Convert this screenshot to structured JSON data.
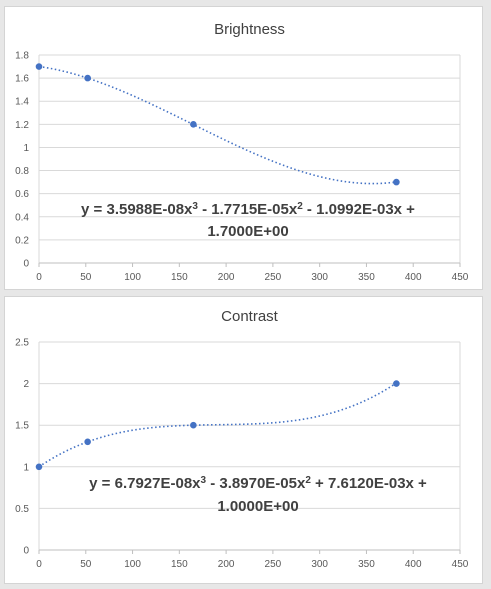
{
  "colors": {
    "marker": "#4472c4",
    "trend": "#4472c4"
  },
  "chart_data": [
    {
      "type": "scatter",
      "title": "Brightness",
      "x": [
        0,
        52,
        165,
        382
      ],
      "y": [
        1.7,
        1.6,
        1.2,
        0.7
      ],
      "xlim": [
        0,
        450
      ],
      "ylim": [
        0,
        1.8
      ],
      "xticks": [
        0,
        50,
        100,
        150,
        200,
        250,
        300,
        350,
        400,
        450
      ],
      "yticks": [
        0,
        0.2,
        0.4,
        0.6,
        0.8,
        1,
        1.2,
        1.4,
        1.6,
        1.8
      ],
      "ytick_labels": [
        "0",
        "0.2",
        "0.4",
        "0.6",
        "0.8",
        "1",
        "1.2",
        "1.4",
        "1.6",
        "1.8"
      ],
      "grid": true,
      "trendline": {
        "type": "polynomial",
        "order": 3,
        "coefficients": [
          3.5988e-08,
          -1.7715e-05,
          -0.0010992,
          1.7
        ]
      },
      "equation_lines": [
        [
          {
            "t": "y = 3.5988E-08x"
          },
          {
            "t": "3",
            "sup": true
          },
          {
            "t": " - 1.7715E-05x"
          },
          {
            "t": "2",
            "sup": true
          },
          {
            "t": " - 1.0992E-03x +"
          }
        ],
        [
          {
            "t": "1.7000E+00"
          }
        ]
      ]
    },
    {
      "type": "scatter",
      "title": "Contrast",
      "x": [
        0,
        52,
        165,
        382
      ],
      "y": [
        1.0,
        1.3,
        1.5,
        2.0
      ],
      "xlim": [
        0,
        450
      ],
      "ylim": [
        0,
        2.5
      ],
      "xticks": [
        0,
        50,
        100,
        150,
        200,
        250,
        300,
        350,
        400,
        450
      ],
      "yticks": [
        0,
        0.5,
        1,
        1.5,
        2,
        2.5
      ],
      "ytick_labels": [
        "0",
        "0.5",
        "1",
        "1.5",
        "2",
        "2.5"
      ],
      "grid": true,
      "trendline": {
        "type": "polynomial",
        "order": 3,
        "coefficients": [
          6.7927e-08,
          -3.897e-05,
          0.007612,
          1.0
        ]
      },
      "equation_lines": [
        [
          {
            "t": "y = 6.7927E-08x"
          },
          {
            "t": "3",
            "sup": true
          },
          {
            "t": " - 3.8970E-05x"
          },
          {
            "t": "2",
            "sup": true
          },
          {
            "t": " + 7.6120E-03x +"
          }
        ],
        [
          {
            "t": "1.0000E+00"
          }
        ]
      ]
    }
  ]
}
